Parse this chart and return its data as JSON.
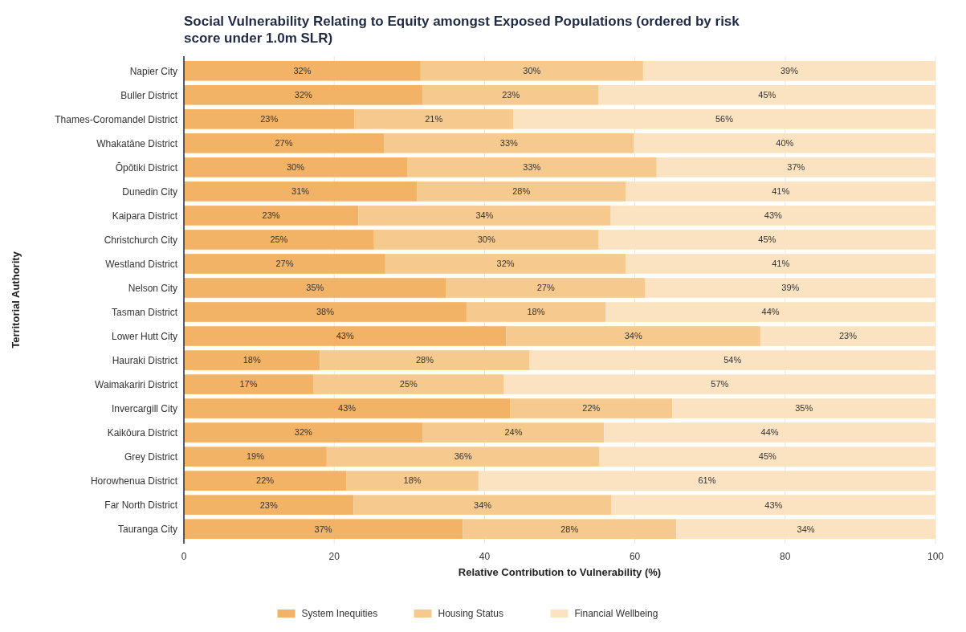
{
  "chart_data": {
    "type": "bar",
    "orientation": "horizontal",
    "stacked": true,
    "title": "Social Vulnerability Relating to Equity amongst Exposed Populations (ordered by risk score under 1.0m SLR)",
    "xlabel": "Relative Contribution to Vulnerability (%)",
    "ylabel": "Territorial Authority",
    "categories": [
      "Napier City",
      "Buller District",
      "Thames-Coromandel District",
      "Whakatāne District",
      "Ōpōtiki District",
      "Dunedin City",
      "Kaipara District",
      "Christchurch City",
      "Westland District",
      "Nelson City",
      "Tasman District",
      "Lower Hutt City",
      "Hauraki District",
      "Waimakariri District",
      "Invercargill City",
      "Kaikōura District",
      "Grey District",
      "Horowhenua District",
      "Far North District",
      "Tauranga City"
    ],
    "series": [
      {
        "name": "System Inequities",
        "color": "#f2b366",
        "values": [
          31.5,
          31.8,
          22.7,
          26.6,
          29.7,
          31.0,
          23.2,
          25.3,
          26.8,
          34.9,
          37.6,
          42.9,
          18.1,
          17.2,
          43.4,
          31.8,
          19.0,
          21.6,
          22.6,
          37.1
        ],
        "value_labels": [
          "32%",
          "32%",
          "23%",
          "27%",
          "30%",
          "31%",
          "23%",
          "25%",
          "27%",
          "35%",
          "38%",
          "43%",
          "18%",
          "17%",
          "43%",
          "32%",
          "19%",
          "22%",
          "23%",
          "37%"
        ]
      },
      {
        "name": "Housing Status",
        "color": "#f6ca8e",
        "values": [
          29.6,
          23.4,
          21.1,
          33.3,
          33.2,
          27.8,
          33.6,
          29.9,
          32.0,
          26.5,
          18.5,
          33.8,
          27.9,
          25.4,
          21.6,
          24.1,
          36.3,
          17.6,
          34.3,
          28.4
        ],
        "value_labels": [
          "30%",
          "23%",
          "21%",
          "33%",
          "33%",
          "28%",
          "34%",
          "30%",
          "32%",
          "27%",
          "18%",
          "34%",
          "28%",
          "25%",
          "22%",
          "24%",
          "36%",
          "18%",
          "34%",
          "28%"
        ]
      },
      {
        "name": "Financial Wellbeing",
        "color": "#fbe3c2",
        "values": [
          38.9,
          44.8,
          56.2,
          40.1,
          37.1,
          41.2,
          43.2,
          44.8,
          41.2,
          38.6,
          43.9,
          23.3,
          54.0,
          57.4,
          35.0,
          44.1,
          44.7,
          60.8,
          43.1,
          34.5
        ],
        "value_labels": [
          "39%",
          "45%",
          "56%",
          "40%",
          "37%",
          "41%",
          "43%",
          "45%",
          "41%",
          "39%",
          "44%",
          "23%",
          "54%",
          "57%",
          "35%",
          "44%",
          "45%",
          "61%",
          "43%",
          "34%"
        ]
      }
    ],
    "xlim": [
      0,
      100
    ],
    "xticks": [
      0,
      20,
      40,
      60,
      80,
      100
    ],
    "grid": "x",
    "legend": "bottom"
  }
}
